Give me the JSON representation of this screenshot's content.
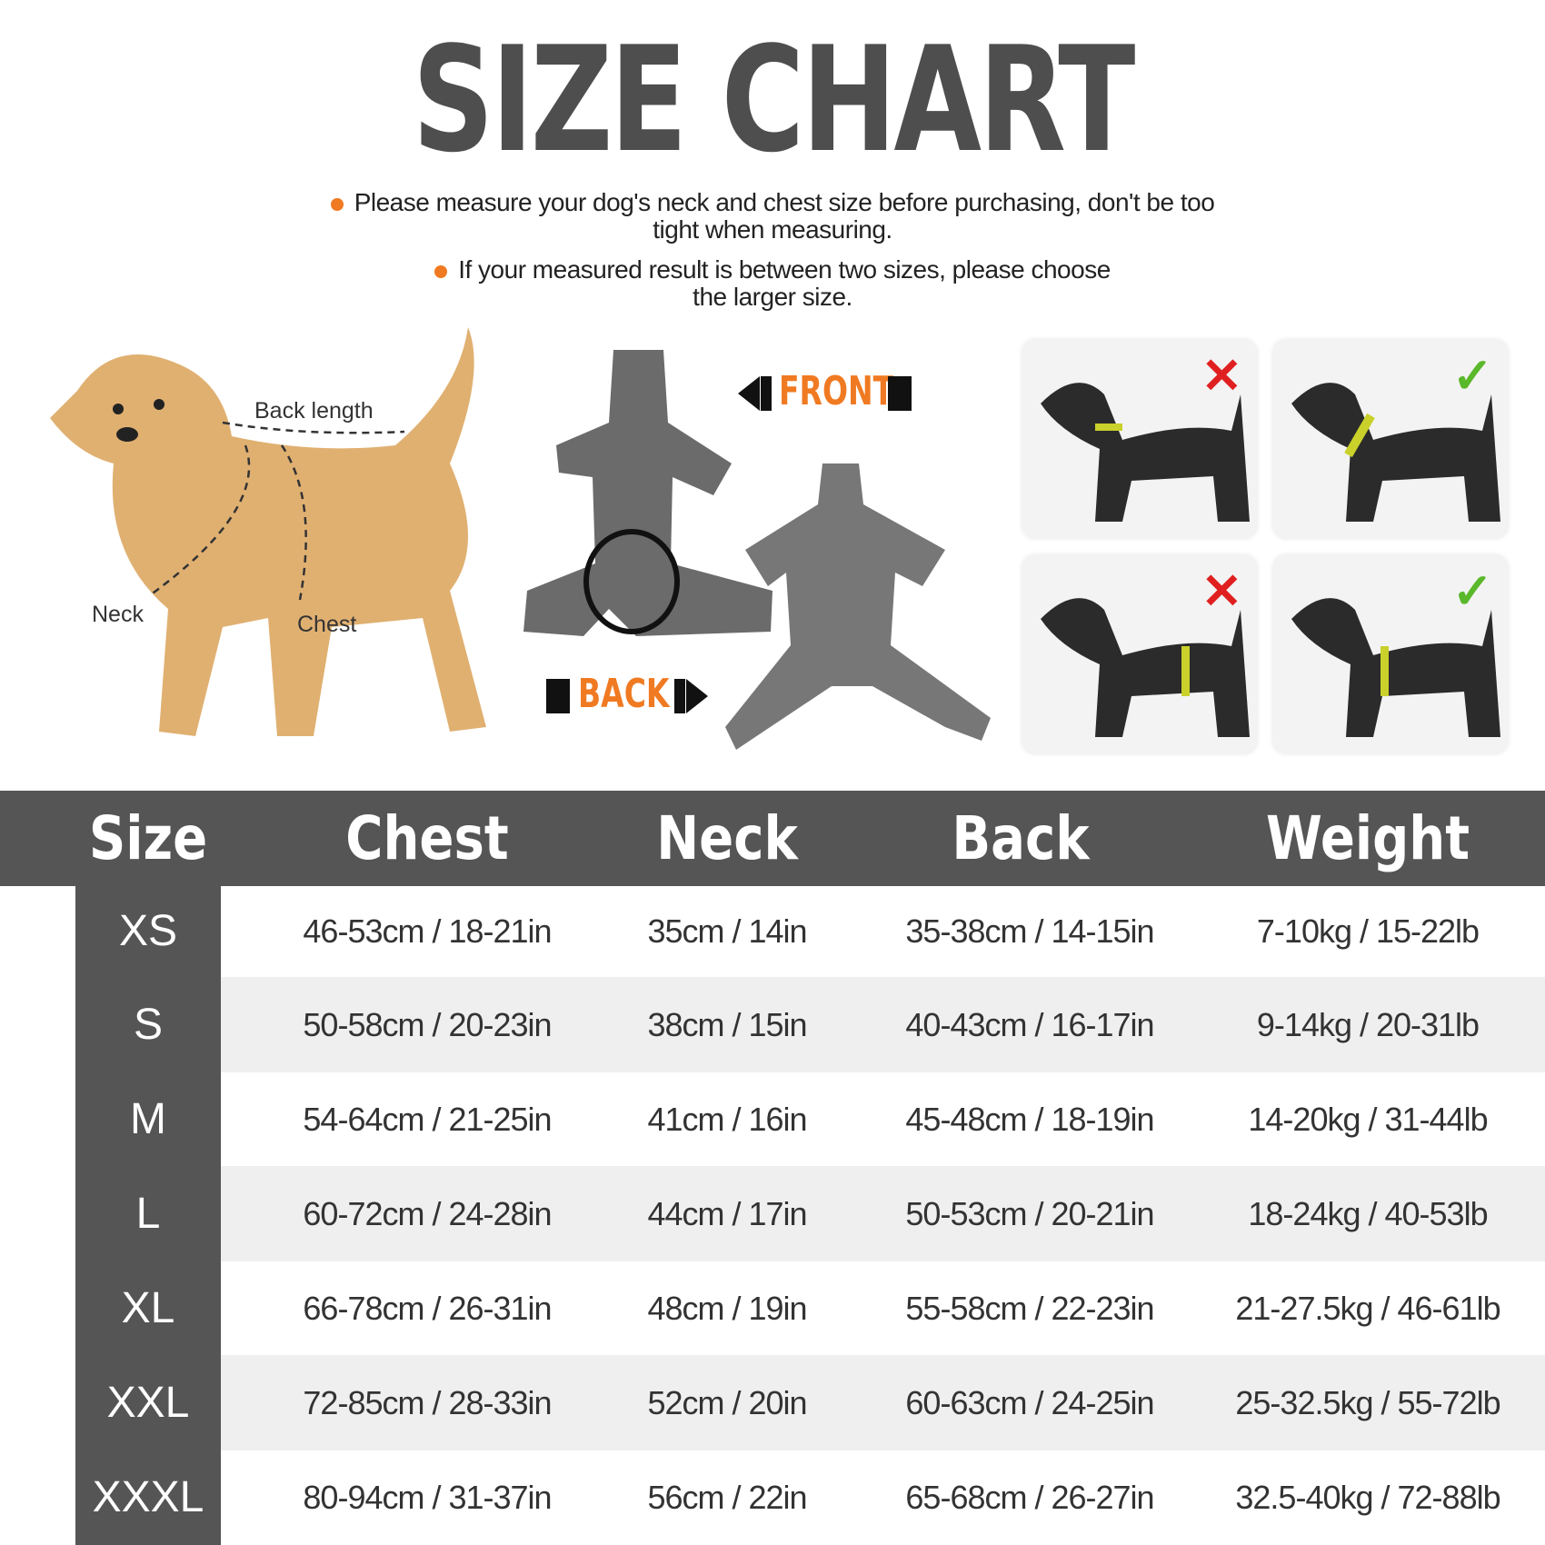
{
  "title": "SIZE CHART",
  "notes": [
    {
      "line1": "Please measure your dog's neck and chest size before purchasing, don't be too",
      "line2": "tight when measuring."
    },
    {
      "line1": "If your measured result is between two sizes, please choose",
      "line2": "the larger size."
    }
  ],
  "diagram": {
    "back_length": "Back length",
    "neck": "Neck",
    "chest": "Chest",
    "front": "FRONT",
    "back": "BACK"
  },
  "colors": {
    "accent": "#f07a22",
    "header": "#555555",
    "stripe": "#efefef"
  },
  "measure_examples": [
    {
      "status": "wrong",
      "icon": "x-icon"
    },
    {
      "status": "correct",
      "icon": "check-icon"
    },
    {
      "status": "wrong",
      "icon": "x-icon"
    },
    {
      "status": "correct",
      "icon": "check-icon"
    }
  ],
  "table": {
    "headers": [
      "Size",
      "Chest",
      "Neck",
      "Back",
      "Weight"
    ],
    "rows": [
      [
        "XS",
        "46-53cm / 18-21in",
        "35cm / 14in",
        "35-38cm / 14-15in",
        "7-10kg / 15-22lb"
      ],
      [
        "S",
        "50-58cm / 20-23in",
        "38cm / 15in",
        "40-43cm / 16-17in",
        "9-14kg / 20-31lb"
      ],
      [
        "M",
        "54-64cm / 21-25in",
        "41cm / 16in",
        "45-48cm / 18-19in",
        "14-20kg / 31-44lb"
      ],
      [
        "L",
        "60-72cm / 24-28in",
        "44cm / 17in",
        "50-53cm / 20-21in",
        "18-24kg / 40-53lb"
      ],
      [
        "XL",
        "66-78cm / 26-31in",
        "48cm / 19in",
        "55-58cm / 22-23in",
        "21-27.5kg / 46-61lb"
      ],
      [
        "XXL",
        "72-85cm / 28-33in",
        "52cm / 20in",
        "60-63cm / 24-25in",
        "25-32.5kg / 55-72lb"
      ],
      [
        "XXXL",
        "80-94cm / 31-37in",
        "56cm / 22in",
        "65-68cm / 26-27in",
        "32.5-40kg / 72-88lb"
      ]
    ]
  }
}
